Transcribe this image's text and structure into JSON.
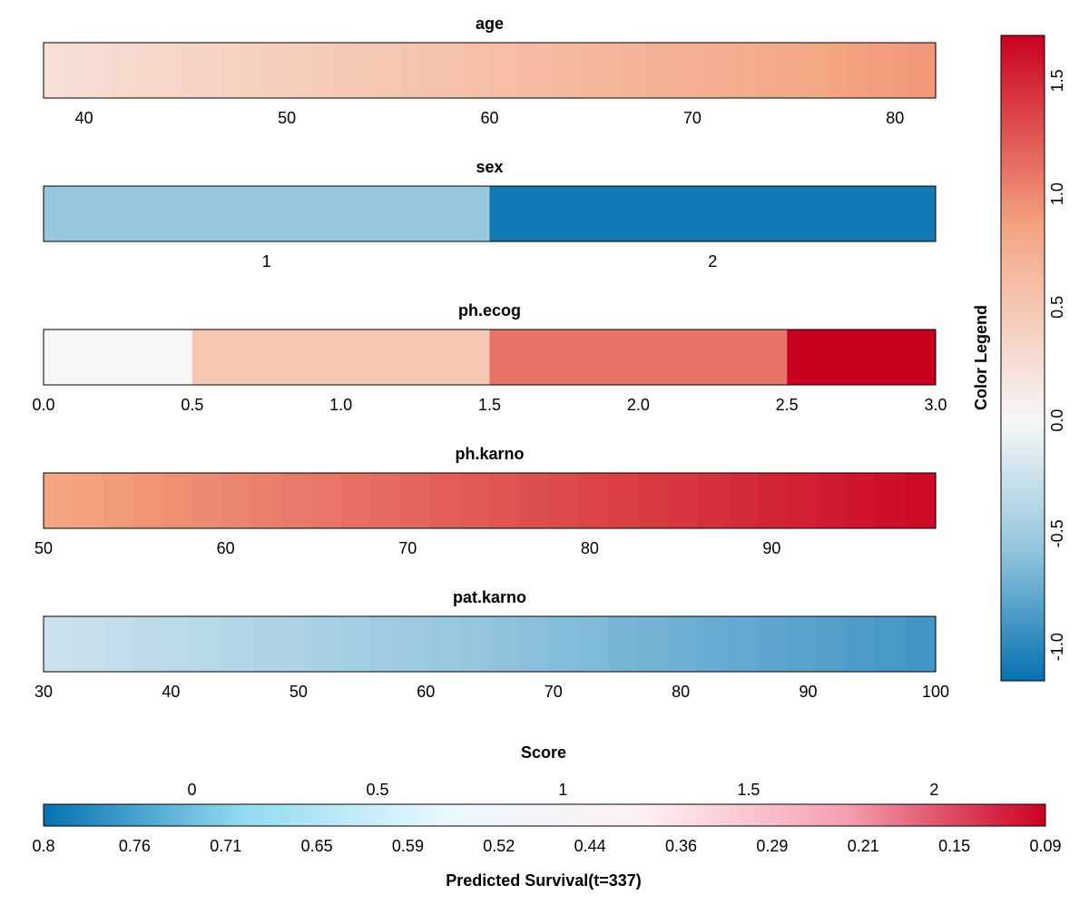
{
  "chart_data": [
    {
      "type": "heatmap",
      "title": "age",
      "tick_labels": [
        "40",
        "50",
        "60",
        "70",
        "80"
      ],
      "tick_values": [
        40,
        50,
        60,
        70,
        80
      ],
      "xlim": [
        38,
        82
      ],
      "cells": [
        {
          "from": 38,
          "to": 82,
          "value_start": 0.25,
          "value_end": 0.92,
          "steps": 40
        }
      ]
    },
    {
      "type": "heatmap",
      "title": "sex",
      "tick_labels": [
        "1",
        "2"
      ],
      "tick_values": [
        1,
        2
      ],
      "xlim": [
        0.5,
        2.5
      ],
      "cells": [
        {
          "from": 0.5,
          "to": 1.5,
          "value": -0.55
        },
        {
          "from": 1.5,
          "to": 2.5,
          "value": -1.1
        }
      ]
    },
    {
      "type": "heatmap",
      "title": "ph.ecog",
      "tick_labels": [
        "0.0",
        "0.5",
        "1.0",
        "1.5",
        "2.0",
        "2.5",
        "3.0"
      ],
      "tick_values": [
        0,
        0.5,
        1,
        1.5,
        2,
        2.5,
        3
      ],
      "xlim": [
        0,
        3
      ],
      "cells": [
        {
          "from": 0,
          "to": 0.5,
          "value": 0
        },
        {
          "from": 0.5,
          "to": 1.5,
          "value": 0.5
        },
        {
          "from": 1.5,
          "to": 2.5,
          "value": 1.1
        },
        {
          "from": 2.5,
          "to": 3,
          "value": 1.7
        }
      ]
    },
    {
      "type": "heatmap",
      "title": "ph.karno",
      "tick_labels": [
        "50",
        "60",
        "70",
        "80",
        "90"
      ],
      "tick_values": [
        50,
        60,
        70,
        80,
        90
      ],
      "xlim": [
        50,
        99
      ],
      "cells": [
        {
          "from": 50,
          "to": 99,
          "value_start": 0.85,
          "value_end": 1.65,
          "steps": 30
        }
      ]
    },
    {
      "type": "heatmap",
      "title": "pat.karno",
      "tick_labels": [
        "30",
        "40",
        "50",
        "60",
        "70",
        "80",
        "90",
        "100"
      ],
      "tick_values": [
        30,
        40,
        50,
        60,
        70,
        80,
        90,
        100
      ],
      "xlim": [
        30,
        100
      ],
      "cells": [
        {
          "from": 30,
          "to": 100,
          "value_start": -0.25,
          "value_end": -0.9,
          "steps": 30
        }
      ]
    }
  ],
  "legend": {
    "title": "Color Legend",
    "range": [
      -1.15,
      1.7
    ],
    "ticks": [
      "-1.0",
      "-0.5",
      "0.0",
      "0.5",
      "1.0",
      "1.5"
    ],
    "tick_values": [
      -1.0,
      -0.5,
      0.0,
      0.5,
      1.0,
      1.5
    ],
    "negative_colors": [
      "#0571B0",
      "#92C5DE",
      "#F7F7F7"
    ],
    "positive_colors": [
      "#F7F7F7",
      "#F4A582",
      "#CA0020"
    ],
    "neutral_color": "#F7F7F7"
  },
  "score": {
    "title": "Score",
    "range": [
      -0.4,
      2.3
    ],
    "score_ticks": [
      "0",
      "0.5",
      "1",
      "1.5",
      "2"
    ],
    "score_tick_values": [
      0,
      0.5,
      1,
      1.5,
      2
    ],
    "survival_label": "Predicted Survival(t=337)",
    "survival_ticks": [
      "0.8",
      "0.76",
      "0.71",
      "0.65",
      "0.59",
      "0.52",
      "0.44",
      "0.36",
      "0.29",
      "0.21",
      "0.15",
      "0.09"
    ],
    "colors": [
      "#0571B0",
      "#92DBF0",
      "#E8F8FF",
      "#FFF0F2",
      "#F5A0B0",
      "#CA0020"
    ]
  }
}
